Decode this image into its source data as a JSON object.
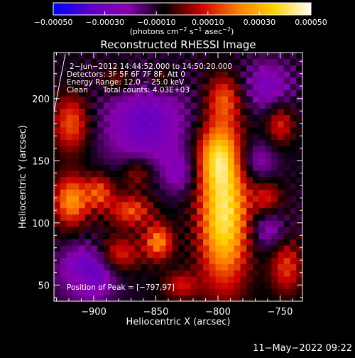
{
  "chart_data": {
    "type": "heatmap",
    "title": "Reconstructed RHESSI Image",
    "xlabel": "Heliocentric X (arcsec)",
    "ylabel": "Heliocentric Y (arcsec)",
    "xlim": [
      -932,
      -732
    ],
    "ylim": [
      37,
      237
    ],
    "xticks": [
      -900,
      -850,
      -800,
      -750
    ],
    "xtick_labels": [
      "−900",
      "−850",
      "−800",
      "−750"
    ],
    "yticks": [
      50,
      100,
      150,
      200
    ],
    "ytick_labels": [
      "50",
      "100",
      "150",
      "200"
    ],
    "colorbar": {
      "range": [
        -0.0005,
        0.0005
      ],
      "ticks": [
        -0.0005,
        -0.0003,
        -0.0001,
        0.0001,
        0.0003,
        0.0005
      ],
      "tick_labels": [
        "−0.00050",
        "−0.00030",
        "−0.00010",
        "0.00010",
        "0.00030",
        "0.00050"
      ],
      "units_prefix": "(photons cm",
      "units_exp1": "−2",
      "units_mid": " s",
      "units_exp2": "−1",
      "units_mid2": " asec",
      "units_exp3": "−2",
      "units_suffix": ")"
    },
    "annotations": {
      "time_range": "2−Jun−2012 14:44:52.000 to 14:50:20.000",
      "detectors": "Detectors: 3F 5F 6F 7F 8F, Att 0",
      "energy_range": "Energy Range: 12.0 − 25.0 keV",
      "method": "Clean",
      "total_counts": "Total counts: 4.03E+03",
      "peak": "Position of Peak = [−797,97]"
    },
    "peak": {
      "x": -797,
      "y": 97
    },
    "sources": [
      {
        "x": -795,
        "y": 105,
        "sx": 14,
        "sy": 38,
        "amp": 0.0005
      },
      {
        "x": -800,
        "y": 155,
        "sx": 12,
        "sy": 18,
        "amp": 0.00032
      },
      {
        "x": -795,
        "y": 200,
        "sx": 10,
        "sy": 14,
        "amp": 0.00024
      },
      {
        "x": -918,
        "y": 118,
        "sx": 10,
        "sy": 14,
        "amp": 0.00034
      },
      {
        "x": -918,
        "y": 180,
        "sx": 10,
        "sy": 16,
        "amp": 0.00026
      },
      {
        "x": -895,
        "y": 125,
        "sx": 8,
        "sy": 10,
        "amp": 0.00024
      },
      {
        "x": -870,
        "y": 110,
        "sx": 12,
        "sy": 9,
        "amp": 0.00025
      },
      {
        "x": -848,
        "y": 85,
        "sx": 8,
        "sy": 10,
        "amp": 0.00032
      },
      {
        "x": -880,
        "y": 75,
        "sx": 12,
        "sy": 10,
        "amp": 0.00022
      },
      {
        "x": -865,
        "y": 140,
        "sx": 9,
        "sy": 9,
        "amp": 0.00016
      },
      {
        "x": -745,
        "y": 65,
        "sx": 9,
        "sy": 15,
        "amp": 0.00022
      },
      {
        "x": -750,
        "y": 180,
        "sx": 8,
        "sy": 12,
        "amp": 0.0002
      },
      {
        "x": -760,
        "y": 120,
        "sx": 8,
        "sy": 10,
        "amp": 0.00018
      },
      {
        "x": -830,
        "y": 50,
        "sx": 10,
        "sy": 8,
        "amp": 0.00017
      },
      {
        "x": -880,
        "y": 215,
        "sx": 10,
        "sy": 8,
        "amp": 0.00014
      },
      {
        "x": -845,
        "y": 215,
        "sx": 8,
        "sy": 8,
        "amp": 0.00012
      },
      {
        "x": -910,
        "y": 55,
        "sx": 8,
        "sy": 8,
        "amp": 0.00012
      }
    ],
    "negative_regions": [
      {
        "x": -858,
        "y": 180,
        "sx": 25,
        "sy": 25,
        "amp": -0.00022
      },
      {
        "x": -905,
        "y": 60,
        "sx": 15,
        "sy": 15,
        "amp": -0.0003
      },
      {
        "x": -760,
        "y": 210,
        "sx": 15,
        "sy": 15,
        "amp": -0.00018
      },
      {
        "x": -770,
        "y": 150,
        "sx": 12,
        "sy": 12,
        "amp": -0.00016
      },
      {
        "x": -830,
        "y": 140,
        "sx": 10,
        "sy": 12,
        "amp": -0.00014
      },
      {
        "x": -760,
        "y": 95,
        "sx": 10,
        "sy": 12,
        "amp": -0.00016
      }
    ],
    "colors": {
      "colormap": [
        "#0000ff",
        "#5a00c8",
        "#8a00b0",
        "#000000",
        "#c80000",
        "#ff7a00",
        "#ffd200",
        "#ffffff"
      ]
    }
  },
  "footer": {
    "date_stamp": "11−May−2022 09:22"
  }
}
